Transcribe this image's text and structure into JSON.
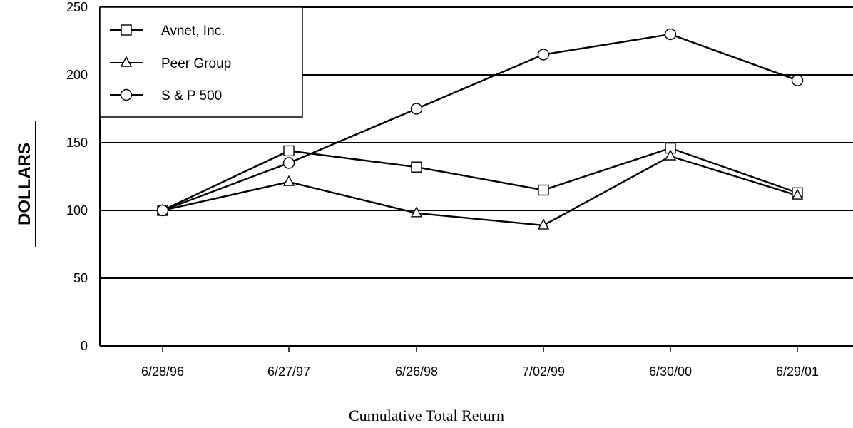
{
  "chart_data": {
    "type": "line",
    "title": "",
    "caption": "Cumulative Total Return",
    "xlabel": "",
    "ylabel": "DOLLARS",
    "categories": [
      "6/28/96",
      "6/27/97",
      "6/26/98",
      "7/02/99",
      "6/30/00",
      "6/29/01"
    ],
    "yticks": [
      0,
      50,
      100,
      150,
      200,
      250
    ],
    "ylim": [
      0,
      250
    ],
    "grid": "horizontal",
    "legend_position": "top-left",
    "series": [
      {
        "name": "Avnet, Inc.",
        "marker": "square",
        "values": [
          100,
          144,
          132,
          115,
          146,
          113
        ]
      },
      {
        "name": "Peer Group",
        "marker": "triangle",
        "values": [
          100,
          121,
          98,
          89,
          140,
          111
        ]
      },
      {
        "name": "S & P 500",
        "marker": "circle",
        "values": [
          100,
          135,
          175,
          215,
          230,
          196
        ]
      }
    ]
  }
}
